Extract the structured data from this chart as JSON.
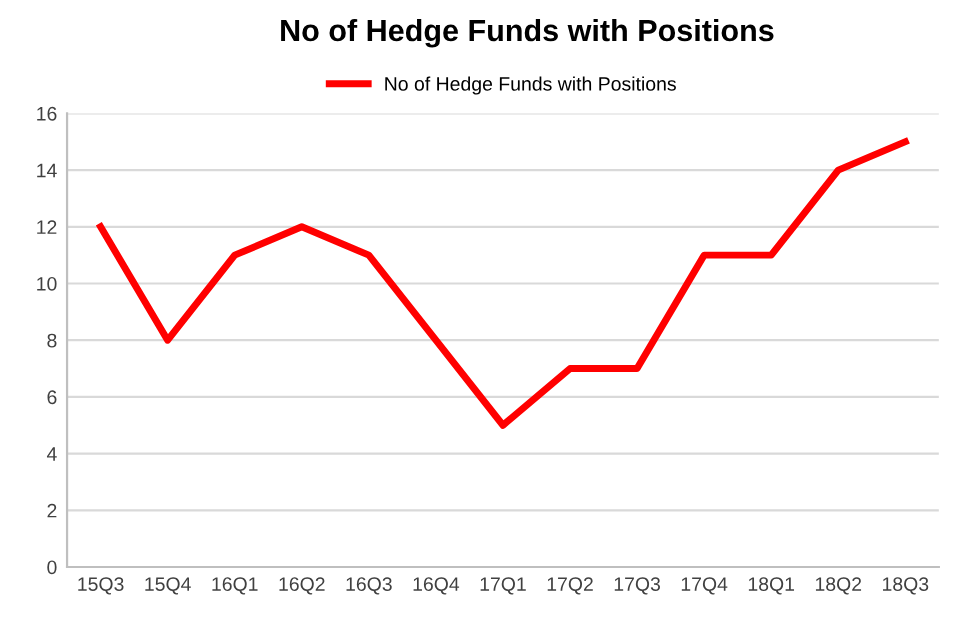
{
  "chart_data": {
    "type": "line",
    "title": "No of Hedge Funds with Positions",
    "categories": [
      "15Q3",
      "15Q4",
      "16Q1",
      "16Q2",
      "16Q3",
      "16Q4",
      "17Q1",
      "17Q2",
      "17Q3",
      "17Q4",
      "18Q1",
      "18Q2",
      "18Q3"
    ],
    "series": [
      {
        "name": "No of Hedge Funds with Positions",
        "color": "#ff0000",
        "values": [
          12,
          8,
          11,
          12,
          11,
          8,
          5,
          7,
          7,
          11,
          11,
          14,
          15
        ]
      }
    ],
    "ylim": [
      0,
      16
    ],
    "yticks": [
      0,
      2,
      4,
      6,
      8,
      10,
      12,
      14,
      16
    ],
    "grid": "y",
    "legend": "top",
    "marker": "none",
    "line_style": "solid"
  }
}
